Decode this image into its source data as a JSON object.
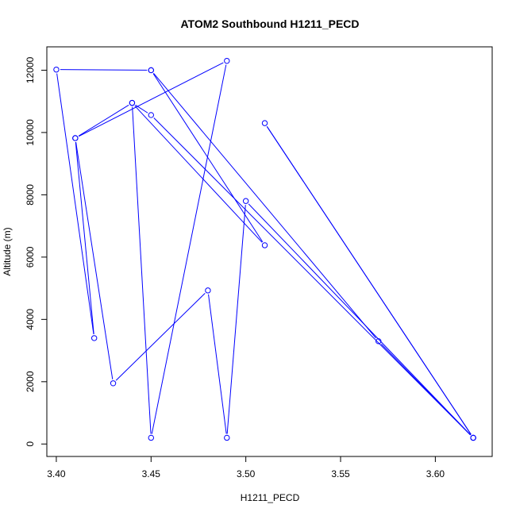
{
  "chart_data": {
    "type": "line",
    "title": "ATOM2 Southbound H1211_PECD",
    "xlabel": "H1211_PECD",
    "ylabel": "Altitude (m)",
    "xlim": [
      3.395,
      3.63
    ],
    "ylim": [
      -400,
      12750
    ],
    "x_ticks": [
      3.4,
      3.45,
      3.5,
      3.55,
      3.6
    ],
    "x_tick_labels": [
      "3.40",
      "3.45",
      "3.50",
      "3.55",
      "3.60"
    ],
    "y_ticks": [
      0,
      2000,
      4000,
      6000,
      8000,
      10000,
      12000
    ],
    "y_tick_labels": [
      "0",
      "2000",
      "4000",
      "6000",
      "8000",
      "10000",
      "12000"
    ],
    "grid": false,
    "series": [
      {
        "color": "#0000ff",
        "marker": "open-circle",
        "x": [
          3.62,
          3.51,
          3.62,
          3.5,
          3.49,
          3.48,
          3.43,
          3.41,
          3.49,
          3.45,
          3.44,
          3.45,
          3.62,
          3.57,
          3.45,
          3.4,
          3.42,
          3.41,
          3.44,
          3.51,
          3.45
        ],
        "y": [
          200,
          10300,
          200,
          7800,
          200,
          4930,
          1950,
          9820,
          12300,
          200,
          10950,
          10560,
          200,
          3300,
          12000,
          12020,
          3400,
          9820,
          10950,
          6380,
          12000
        ]
      }
    ]
  }
}
